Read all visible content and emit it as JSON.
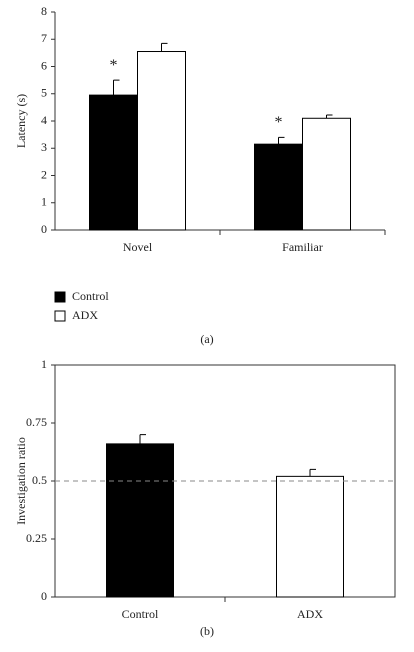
{
  "charts": [
    {
      "type": "grouped_bar",
      "caption": "(a)",
      "y_label": "Latency (s)",
      "categories": [
        "Novel",
        "Familiar"
      ],
      "series": [
        {
          "name": "Control",
          "color": "#000000",
          "values": [
            4.95,
            3.15
          ],
          "errors": [
            0.55,
            0.25
          ],
          "annotations": [
            "*",
            "*"
          ]
        },
        {
          "name": "ADX",
          "color": "#ffffff",
          "values": [
            6.55,
            4.1
          ],
          "errors": [
            0.3,
            0.12
          ]
        }
      ],
      "ylim": [
        0,
        8
      ],
      "yticks": [
        0,
        1,
        2,
        3,
        4,
        5,
        6,
        7,
        8
      ],
      "frame": "axes",
      "legend": "bottom-left"
    },
    {
      "type": "bar",
      "caption": "(b)",
      "y_label": "Investigation ratio",
      "categories": [
        "Control",
        "ADX"
      ],
      "values": [
        0.66,
        0.52
      ],
      "errors": [
        0.04,
        0.03
      ],
      "colors": [
        "#000000",
        "#ffffff"
      ],
      "reference_line": 0.5,
      "ylim": [
        0,
        1
      ],
      "yticks": [
        0,
        0.25,
        0.5,
        0.75,
        1
      ],
      "frame": "box"
    }
  ]
}
